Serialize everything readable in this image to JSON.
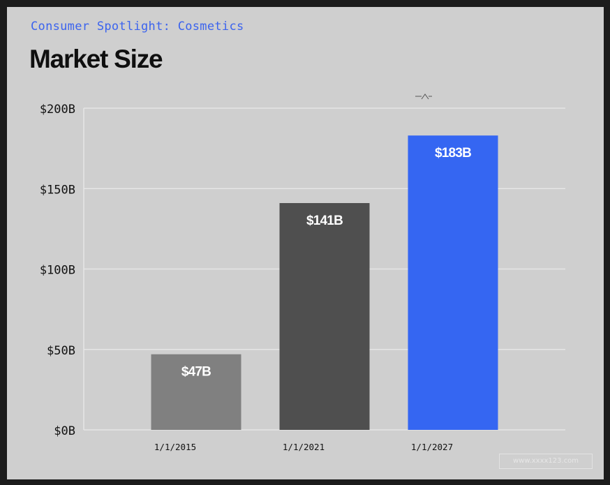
{
  "header": {
    "subtitle": "Consumer Spotlight: Cosmetics",
    "title": "Market Size"
  },
  "colors": {
    "card_background": "#cfcfcf",
    "subtitle": "#3b63ee",
    "gridline": "#e6e6e6",
    "bar_2015": "#808080",
    "bar_2021": "#4f4f4f",
    "bar_2027": "#3566f2"
  },
  "chart_data": {
    "type": "bar",
    "title": "Market Size",
    "subtitle": "Consumer Spotlight: Cosmetics",
    "xlabel": "",
    "ylabel": "",
    "categories": [
      "1/1/2015",
      "1/1/2021",
      "1/1/2027"
    ],
    "values": [
      47,
      141,
      183
    ],
    "data_labels": [
      "$47B",
      "$141B",
      "$183B"
    ],
    "ylim": [
      0,
      200
    ],
    "y_ticks": [
      0,
      50,
      100,
      150,
      200
    ],
    "y_tick_labels": [
      "$0B",
      "$50B",
      "$100B",
      "$150B",
      "$200B"
    ],
    "grid": true,
    "bar_colors": [
      "#808080",
      "#4f4f4f",
      "#3566f2"
    ]
  },
  "watermark": {
    "text": "www.xxxx123.com"
  }
}
